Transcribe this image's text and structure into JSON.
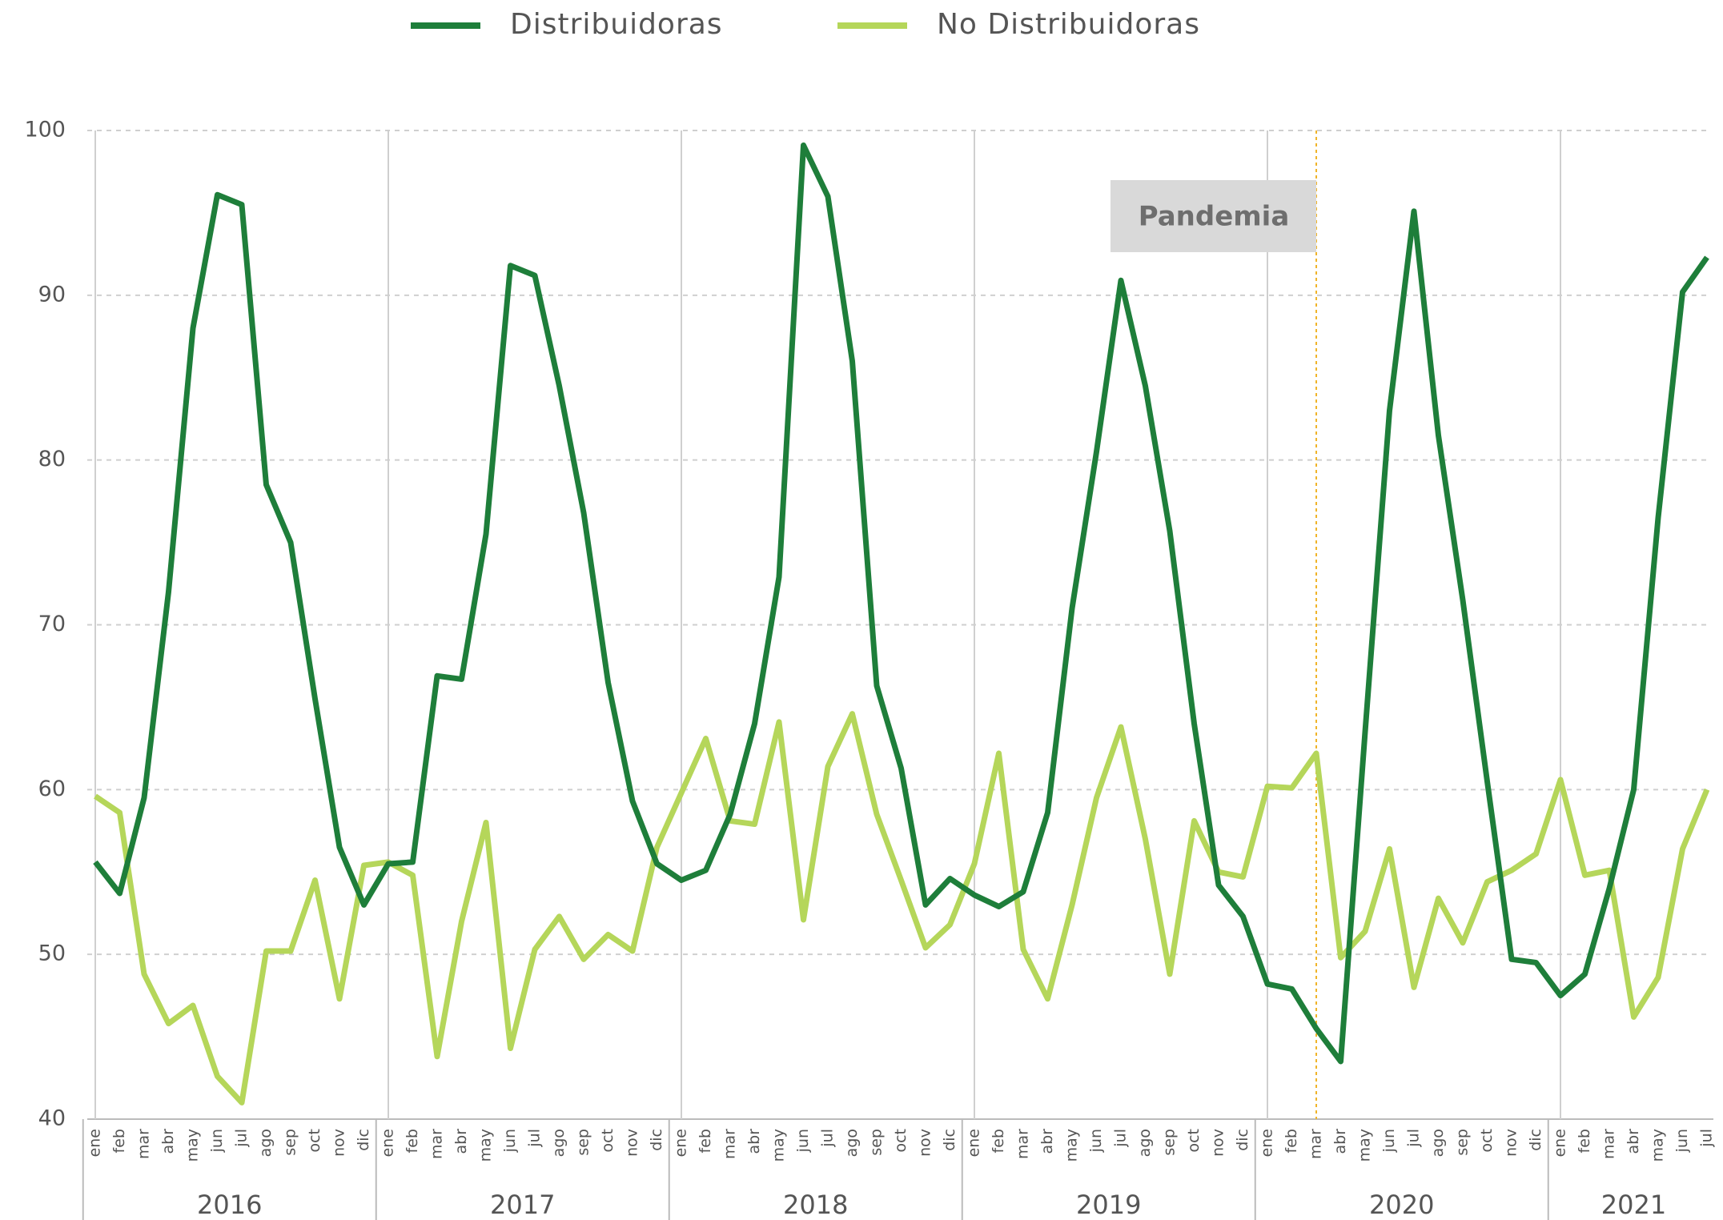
{
  "chart_data": {
    "type": "line",
    "year_groups": [
      {
        "label": "2016",
        "categories": [
          "ene",
          "feb",
          "mar",
          "abr",
          "may",
          "jun",
          "jul",
          "ago",
          "sep",
          "oct",
          "nov",
          "dic"
        ]
      },
      {
        "label": "2017",
        "categories": [
          "ene",
          "feb",
          "mar",
          "abr",
          "may",
          "jun",
          "jul",
          "ago",
          "sep",
          "oct",
          "nov",
          "dic"
        ]
      },
      {
        "label": "2018",
        "categories": [
          "ene",
          "feb",
          "mar",
          "abr",
          "may",
          "jun",
          "jul",
          "ago",
          "sep",
          "oct",
          "nov",
          "dic"
        ]
      },
      {
        "label": "2019",
        "categories": [
          "ene",
          "feb",
          "mar",
          "abr",
          "may",
          "jun",
          "jul",
          "ago",
          "sep",
          "oct",
          "nov",
          "dic"
        ]
      },
      {
        "label": "2020",
        "categories": [
          "ene",
          "feb",
          "mar",
          "abr",
          "may",
          "jun",
          "jul",
          "ago",
          "sep",
          "oct",
          "nov",
          "dic"
        ]
      },
      {
        "label": "2021",
        "categories": [
          "ene",
          "feb",
          "mar",
          "abr",
          "may",
          "jun",
          "jul"
        ]
      }
    ],
    "series": [
      {
        "name": "Distribuidoras",
        "color": "#1e7e3a",
        "values": [
          55.6,
          53.7,
          59.5,
          72,
          88,
          96.1,
          95.5,
          78.5,
          75,
          65.5,
          56.5,
          53,
          55.5,
          55.6,
          66.9,
          66.7,
          75.5,
          91.8,
          91.2,
          84.5,
          76.8,
          66.5,
          59.3,
          55.5,
          54.5,
          55.1,
          58.5,
          64,
          72.9,
          99.1,
          96,
          86,
          66.3,
          61.3,
          53,
          54.6,
          53.6,
          52.9,
          53.8,
          58.6,
          71,
          80.5,
          90.9,
          84.5,
          75.7,
          64,
          54.2,
          52.3,
          48.2,
          47.9,
          45.5,
          43.5,
          63.5,
          83,
          95.1,
          81.5,
          71.5,
          60.5,
          49.7,
          49.5,
          47.5,
          48.8,
          54,
          60,
          76.5,
          90.2,
          92.3
        ]
      },
      {
        "name": "No Distribuidoras",
        "color": "#b5d65a",
        "values": [
          59.6,
          58.6,
          48.8,
          45.8,
          46.9,
          42.6,
          41,
          50.2,
          50.2,
          54.5,
          47.3,
          55.4,
          55.6,
          54.8,
          43.8,
          52,
          58,
          44.3,
          50.3,
          52.3,
          49.7,
          51.2,
          50.2,
          56.5,
          59.8,
          63.1,
          58.1,
          57.9,
          64.1,
          52.1,
          61.4,
          64.6,
          58.5,
          54.5,
          50.4,
          51.8,
          55.5,
          62.2,
          50.3,
          47.3,
          53,
          59.5,
          63.8,
          57,
          48.8,
          58.1,
          55,
          54.7,
          60.2,
          60.1,
          62.2,
          49.8,
          51.4,
          56.4,
          48,
          53.4,
          50.7,
          54.4,
          55.1,
          56.1,
          60.6,
          54.8,
          55.1,
          46.2,
          48.6,
          56.4,
          60
        ]
      }
    ],
    "annotation": {
      "text": "Pandemia",
      "year": "2020",
      "month": "mar"
    },
    "ylim": [
      40,
      100
    ],
    "yticks": [
      40,
      50,
      60,
      70,
      80,
      90,
      100
    ],
    "grid": true,
    "legend": "top"
  }
}
